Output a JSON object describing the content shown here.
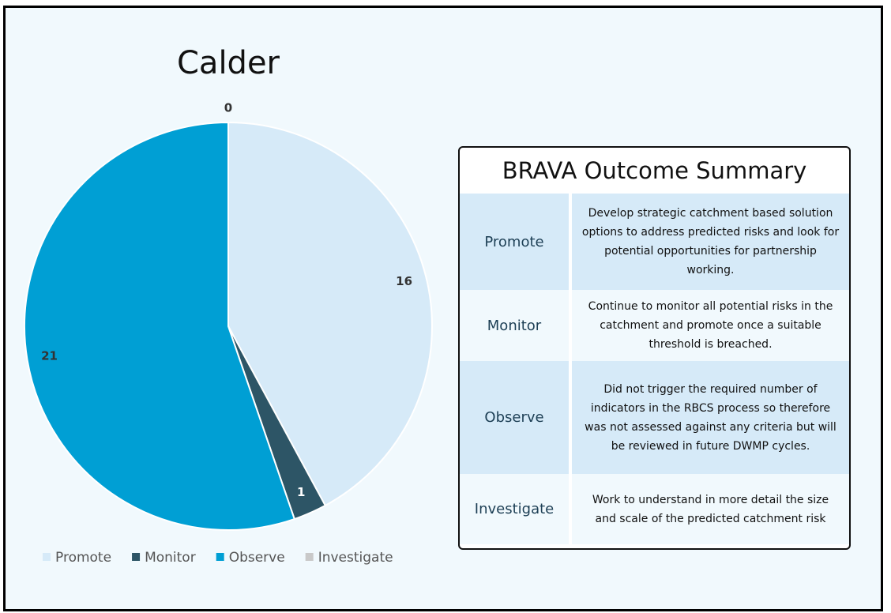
{
  "chart_data": {
    "type": "pie",
    "title": "Calder",
    "categories": [
      "Promote",
      "Monitor",
      "Observe",
      "Investigate"
    ],
    "values": [
      16,
      1,
      21,
      0
    ],
    "colors": [
      "#d6eaf8",
      "#2d5566",
      "#009fd4",
      "#c9c9c9"
    ],
    "legend": "bottom"
  },
  "table": {
    "title": "BRAVA Outcome Summary",
    "rows": [
      [
        "Promote",
        "Develop strategic catchment based solution options to address predicted risks and look for potential opportunities for partnership working."
      ],
      [
        "Monitor",
        "Continue to monitor all potential risks in the catchment and promote once a suitable threshold is breached."
      ],
      [
        "Observe",
        "Did not trigger the required number of indicators in the RBCS process so therefore was not assessed against any criteria but will be reviewed in future DWMP cycles."
      ],
      [
        "Investigate",
        "Work to understand in more detail the size and scale of the predicted catchment risk"
      ]
    ]
  }
}
